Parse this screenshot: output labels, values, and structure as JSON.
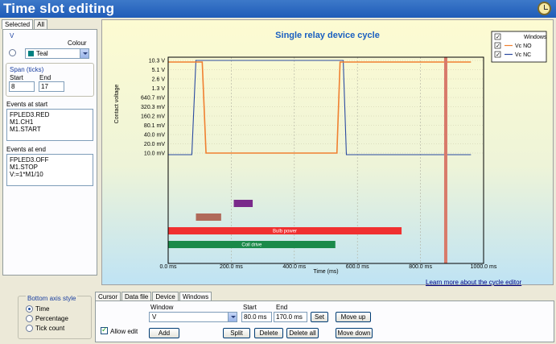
{
  "title": "Time slot editing",
  "left": {
    "tabs": [
      {
        "label": "Selected",
        "active": true
      },
      {
        "label": "All",
        "active": false
      }
    ],
    "variable": "V",
    "colour_label": "Colour",
    "colour_value": "Teal",
    "span_label": "Span (ticks)",
    "start_label": "Start",
    "end_label": "End",
    "start_value": "8",
    "end_value": "17",
    "events_start_label": "Events at start",
    "events_start": [
      "FPLED3.RED",
      "M1.CH1",
      "M1.START"
    ],
    "events_end_label": "Events at end",
    "events_end": [
      "FPLED3.OFF",
      "M1.STOP",
      "V:=1*M1/10"
    ]
  },
  "chart_data": {
    "type": "line",
    "title": "Single relay device cycle",
    "xlabel": "Time (ms)",
    "ylabel": "Contact voltage",
    "xlim": [
      0,
      1000
    ],
    "x_ticks": [
      "0.0 ms",
      "200.0 ms",
      "400.0 ms",
      "600.0 ms",
      "800.0 ms",
      "1000.0 ms"
    ],
    "y_ticks": [
      "10.3 V",
      "5.1 V",
      "2.6 V",
      "1.3 V",
      "640.7 mV",
      "320.3 mV",
      "160.2 mV",
      "80.1 mV",
      "40.0 mV",
      "20.0 mV",
      "10.0 mV"
    ],
    "legend": [
      {
        "name": "Windows",
        "color": "#ffffff"
      },
      {
        "name": "Vc NO",
        "color": "#f08030"
      },
      {
        "name": "Vc NC",
        "color": "#2a4aa0"
      }
    ],
    "series": [
      {
        "name": "Vc NC",
        "color": "#2a4aa0",
        "x": [
          0,
          75,
          88,
          100,
          555,
          565,
          580,
          960
        ],
        "y": [
          10.0,
          10.0,
          10.3,
          10.3,
          10.3,
          10.0,
          10.0,
          10.0
        ]
      },
      {
        "name": "Vc NO",
        "color": "#f08030",
        "x": [
          0,
          80,
          90,
          108,
          120,
          535,
          545,
          555,
          960
        ],
        "y": [
          10.3,
          10.3,
          10.3,
          10.3,
          10.0,
          10.0,
          10.3,
          10.3,
          10.3
        ]
      }
    ],
    "bars": [
      {
        "label": "",
        "color": "#7a2a8a",
        "start": 208,
        "end": 268
      },
      {
        "label": "",
        "color": "#b06a5a",
        "start": 88,
        "end": 168
      },
      {
        "label": "Bulb power",
        "color": "#f03030",
        "start": 0,
        "end": 740
      },
      {
        "label": "Coil drive",
        "color": "#1a8a4a",
        "start": 0,
        "end": 530
      }
    ],
    "cursor_ms": 880
  },
  "learn_more": "Learn more about the cycle editor",
  "bottom_axis": {
    "title": "Bottom axis style",
    "options": [
      {
        "label": "Time",
        "selected": true
      },
      {
        "label": "Percentage",
        "selected": false
      },
      {
        "label": "Tick count",
        "selected": false
      }
    ]
  },
  "bottom_tabs": [
    {
      "label": "Cursor",
      "active": false
    },
    {
      "label": "Data file",
      "active": false
    },
    {
      "label": "Device",
      "active": false
    },
    {
      "label": "Windows",
      "active": true
    }
  ],
  "windows_tab": {
    "window_label": "Window",
    "window_value": "V",
    "start_label": "Start",
    "end_label": "End",
    "start_value": "80.0 ms",
    "end_value": "170.0 ms",
    "set": "Set",
    "move_up": "Move up",
    "allow_edit": "Allow edit",
    "add": "Add",
    "split": "Split",
    "delete": "Delete",
    "delete_all": "Delete all",
    "move_down": "Move down"
  }
}
